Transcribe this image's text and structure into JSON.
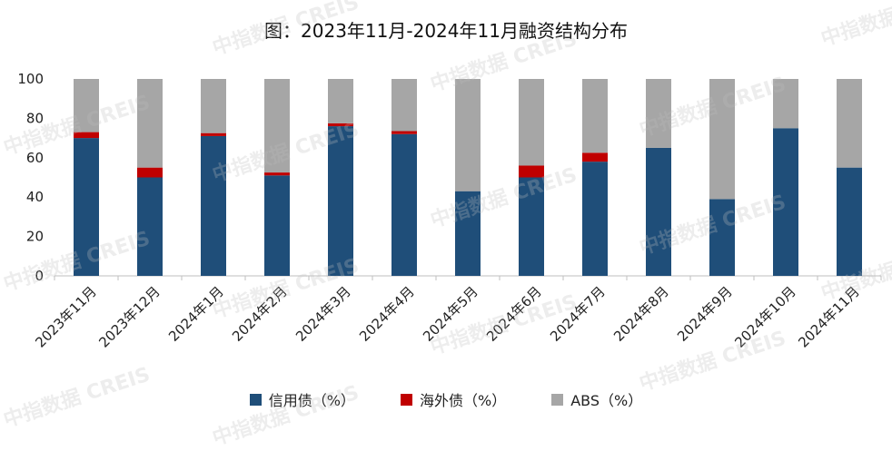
{
  "title": "图：2023年11月-2024年11月融资结构分布",
  "watermark": "中指数据 CREIS",
  "colors": {
    "credit": "#1f4e79",
    "overseas": "#c00000",
    "abs": "#a6a6a6"
  },
  "chart_data": {
    "type": "bar",
    "stacked": true,
    "title": "图：2023年11月-2024年11月融资结构分布",
    "categories": [
      "2023年11月",
      "2023年12月",
      "2024年1月",
      "2024年2月",
      "2024年3月",
      "2024年4月",
      "2024年5月",
      "2024年6月",
      "2024年7月",
      "2024年8月",
      "2024年9月",
      "2024年10月",
      "2024年11月"
    ],
    "ylim": [
      0,
      100
    ],
    "yticks": [
      "0",
      "20",
      "40",
      "60",
      "80",
      "100"
    ],
    "grid": false,
    "legend_position": "bottom",
    "series": [
      {
        "name": "信用债（%）",
        "color_key": "credit",
        "values": [
          70,
          50,
          71,
          51,
          76,
          72,
          43,
          50,
          58,
          65,
          39,
          75,
          55
        ]
      },
      {
        "name": "海外债（%）",
        "color_key": "overseas",
        "values": [
          3,
          5,
          1.5,
          1.5,
          1.5,
          1.5,
          0,
          6,
          4.5,
          0,
          0,
          0,
          0
        ]
      },
      {
        "name": "ABS（%）",
        "color_key": "abs",
        "values": [
          27,
          45,
          27.5,
          47.5,
          22.5,
          26.5,
          57,
          44,
          37.5,
          35,
          61,
          25,
          45
        ]
      }
    ]
  }
}
